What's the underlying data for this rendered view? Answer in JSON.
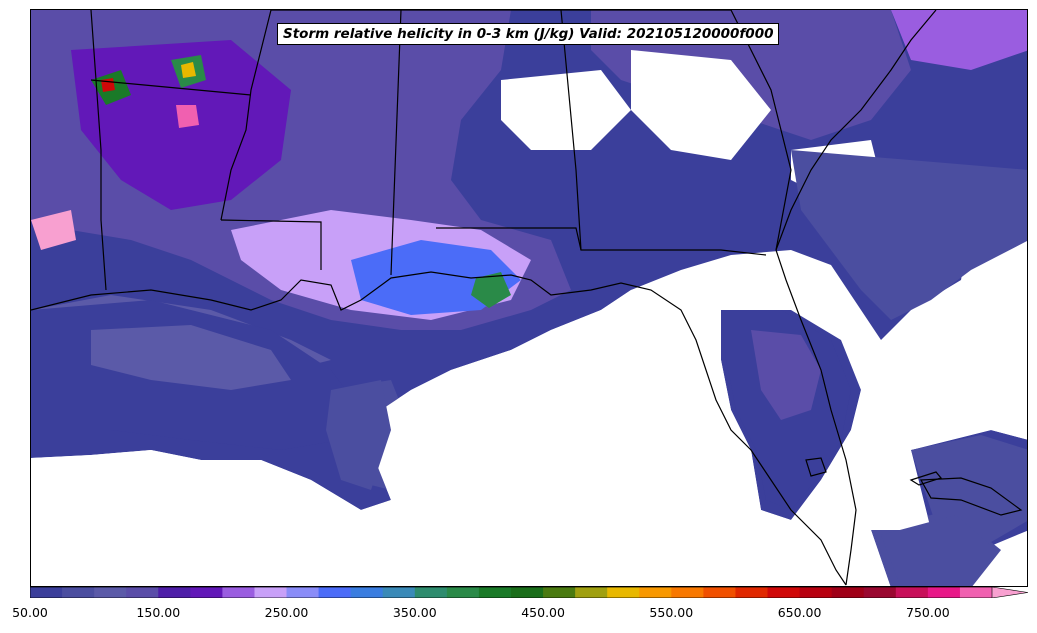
{
  "title": "Storm relative helicity in 0-3 km (J/kg) Valid: 202105120000f000",
  "colorbar": {
    "min": 50,
    "max": 815,
    "extend": "max",
    "step": 25,
    "ticks": [
      {
        "value": 50,
        "label": "50.00"
      },
      {
        "value": 150,
        "label": "150.00"
      },
      {
        "value": 250,
        "label": "250.00"
      },
      {
        "value": 350,
        "label": "350.00"
      },
      {
        "value": 450,
        "label": "450.00"
      },
      {
        "value": 550,
        "label": "550.00"
      },
      {
        "value": 650,
        "label": "650.00"
      },
      {
        "value": 750,
        "label": "750.00"
      }
    ],
    "colors": [
      "#3b3f9b",
      "#4b4ea0",
      "#5b5aa8",
      "#5a4da8",
      "#4e1ea8",
      "#6218b8",
      "#9a5de0",
      "#c8a0f8",
      "#8a8cf8",
      "#4b6cf8",
      "#3a7de0",
      "#3a8ab8",
      "#2e8c6e",
      "#2a8a48",
      "#1a7a28",
      "#1a6e1a",
      "#4a7a10",
      "#a0a010",
      "#e8b800",
      "#f89800",
      "#f87800",
      "#f05000",
      "#e02800",
      "#d00808",
      "#b80010",
      "#a00018",
      "#9a0830",
      "#c8105a",
      "#e81888",
      "#f060b0",
      "#f8a0d0"
    ]
  },
  "map": {
    "land_color": "#ffffff",
    "border_color": "#000000"
  }
}
